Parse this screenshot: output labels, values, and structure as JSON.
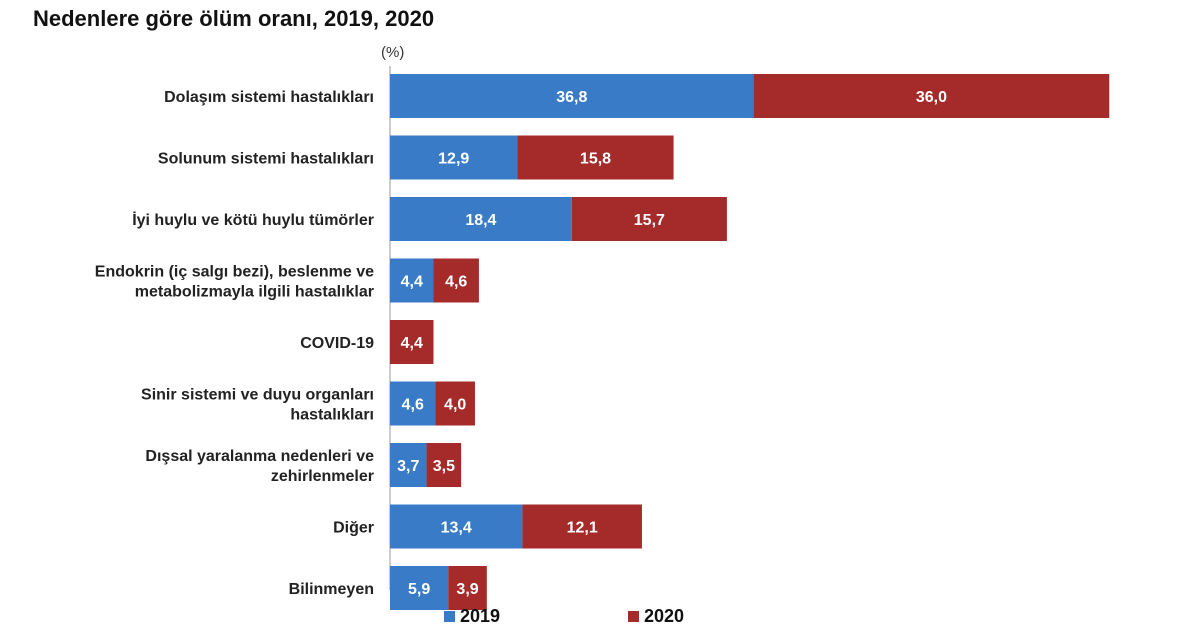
{
  "chart_data": {
    "type": "bar",
    "stacked": true,
    "orientation": "horizontal",
    "title": "Nedenlere göre ölüm oranı, 2019, 2020",
    "unit_label": "(%)",
    "categories": [
      [
        "Dolaşım sistemi hastalıkları"
      ],
      [
        "Solunum sistemi hastalıkları"
      ],
      [
        "İyi huylu ve kötü huylu tümörler"
      ],
      [
        "Endokrin (iç salgı bezi), beslenme ve",
        "metabolizmayla ilgili hastalıklar"
      ],
      [
        "COVID-19"
      ],
      [
        "Sinir sistemi ve duyu organları",
        "hastalıkları"
      ],
      [
        "Dışsal yaralanma nedenleri ve",
        "zehirlenmeler"
      ],
      [
        "Diğer"
      ],
      [
        "Bilinmeyen"
      ]
    ],
    "series": [
      {
        "name": "2019",
        "color": "#3a7bc8",
        "values": [
          36.8,
          12.9,
          18.4,
          4.4,
          null,
          4.6,
          3.7,
          13.4,
          5.9
        ],
        "labels": [
          "36,8",
          "12,9",
          "18,4",
          "4,4",
          "",
          "4,6",
          "3,7",
          "13,4",
          "5,9"
        ]
      },
      {
        "name": "2020",
        "color": "#a52a2a",
        "values": [
          36.0,
          15.8,
          15.7,
          4.6,
          4.4,
          4.0,
          3.5,
          12.1,
          3.9
        ],
        "labels": [
          "36,0",
          "15,8",
          "15,7",
          "4,6",
          "4,4",
          "4,0",
          "3,5",
          "12,1",
          "3,9"
        ]
      }
    ],
    "xlim": [
      0,
      72.8
    ],
    "grid": false,
    "legend_position": "bottom"
  }
}
